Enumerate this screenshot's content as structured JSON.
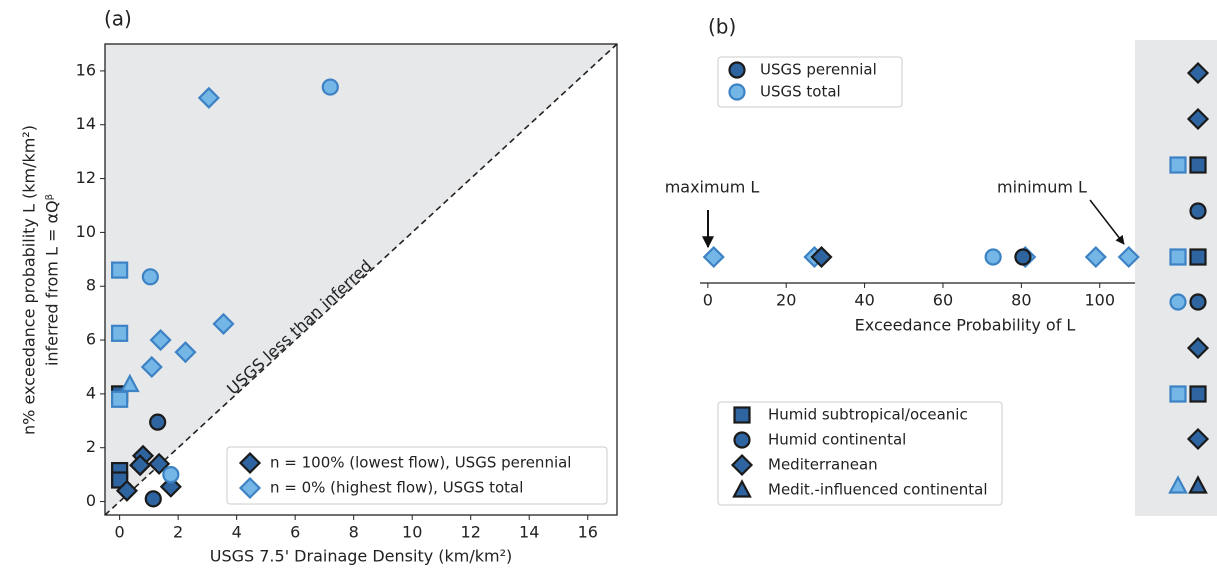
{
  "chart_data": [
    {
      "type": "scatter",
      "panel": "(a)",
      "xlabel": "USGS 7.5' Drainage Density (km/km²)",
      "ylabel": [
        "n% exceedance probability L (km/km²)",
        "inferred from L = αQᵝ"
      ],
      "annotation": "USGS less than inferred",
      "xlim": [
        -0.5,
        17
      ],
      "ylim": [
        -0.5,
        17
      ],
      "xticks": [
        0,
        2,
        4,
        6,
        8,
        10,
        12,
        14,
        16
      ],
      "yticks": [
        0,
        2,
        4,
        6,
        8,
        10,
        12,
        14,
        16
      ],
      "legend": "lower right",
      "series": [
        {
          "name": "n = 100% (lowest flow), USGS perennial",
          "color": "#2e64a0",
          "edge": "#1a1a1a",
          "x": [
            0,
            0,
            0,
            1.3,
            1.15,
            0.25,
            0.8,
            0.7,
            1.35,
            1.75
          ],
          "values": [
            1.15,
            0.8,
            4.0,
            2.95,
            0.1,
            0.4,
            1.7,
            1.35,
            1.4,
            0.55
          ],
          "markers": [
            "square",
            "square",
            "square",
            "circle",
            "circle",
            "diamond",
            "diamond",
            "diamond",
            "diamond",
            "diamond"
          ]
        },
        {
          "name": "n = 0% (highest flow), USGS total",
          "color": "#74b6e6",
          "edge": "#3c82c4",
          "x": [
            3.05,
            7.2,
            0,
            0,
            0,
            1.05,
            1.4,
            3.55,
            2.25,
            1.1,
            0.35,
            1.75
          ],
          "values": [
            15.0,
            15.4,
            8.6,
            6.25,
            3.8,
            8.35,
            6.0,
            6.6,
            5.55,
            5.0,
            4.35,
            1.0
          ],
          "markers": [
            "diamond",
            "circle",
            "square",
            "square",
            "square",
            "circle",
            "diamond",
            "diamond",
            "diamond",
            "diamond",
            "triangle",
            "circle"
          ]
        }
      ]
    },
    {
      "type": "strip",
      "panel": "(b)",
      "xlabel": "Exceedance Probability of L",
      "xlim": [
        -2,
        109
      ],
      "xticks": [
        0,
        20,
        40,
        60,
        80,
        100
      ],
      "annotations": [
        "maximum L",
        "minimum L"
      ],
      "series": [
        {
          "name": "USGS perennial",
          "color": "#2e64a0",
          "edge": "#1a1a1a",
          "values": [
            29,
            80.4
          ],
          "markers": [
            "diamond",
            "circle"
          ]
        },
        {
          "name": "USGS total",
          "color": "#74b6e6",
          "edge": "#3c82c4",
          "values": [
            1.5,
            27.2,
            72.8,
            81,
            99,
            107.4
          ],
          "markers": [
            "diamond",
            "diamond",
            "circle",
            "diamond",
            "diamond",
            "diamond"
          ]
        }
      ],
      "climate_legend": [
        {
          "name": "Humid subtropical/oceanic",
          "marker": "square"
        },
        {
          "name": "Humid continental",
          "marker": "circle"
        },
        {
          "name": "Mediterranean",
          "marker": "diamond"
        },
        {
          "name": "Medit.-influenced continental",
          "marker": "triangle"
        }
      ]
    }
  ]
}
